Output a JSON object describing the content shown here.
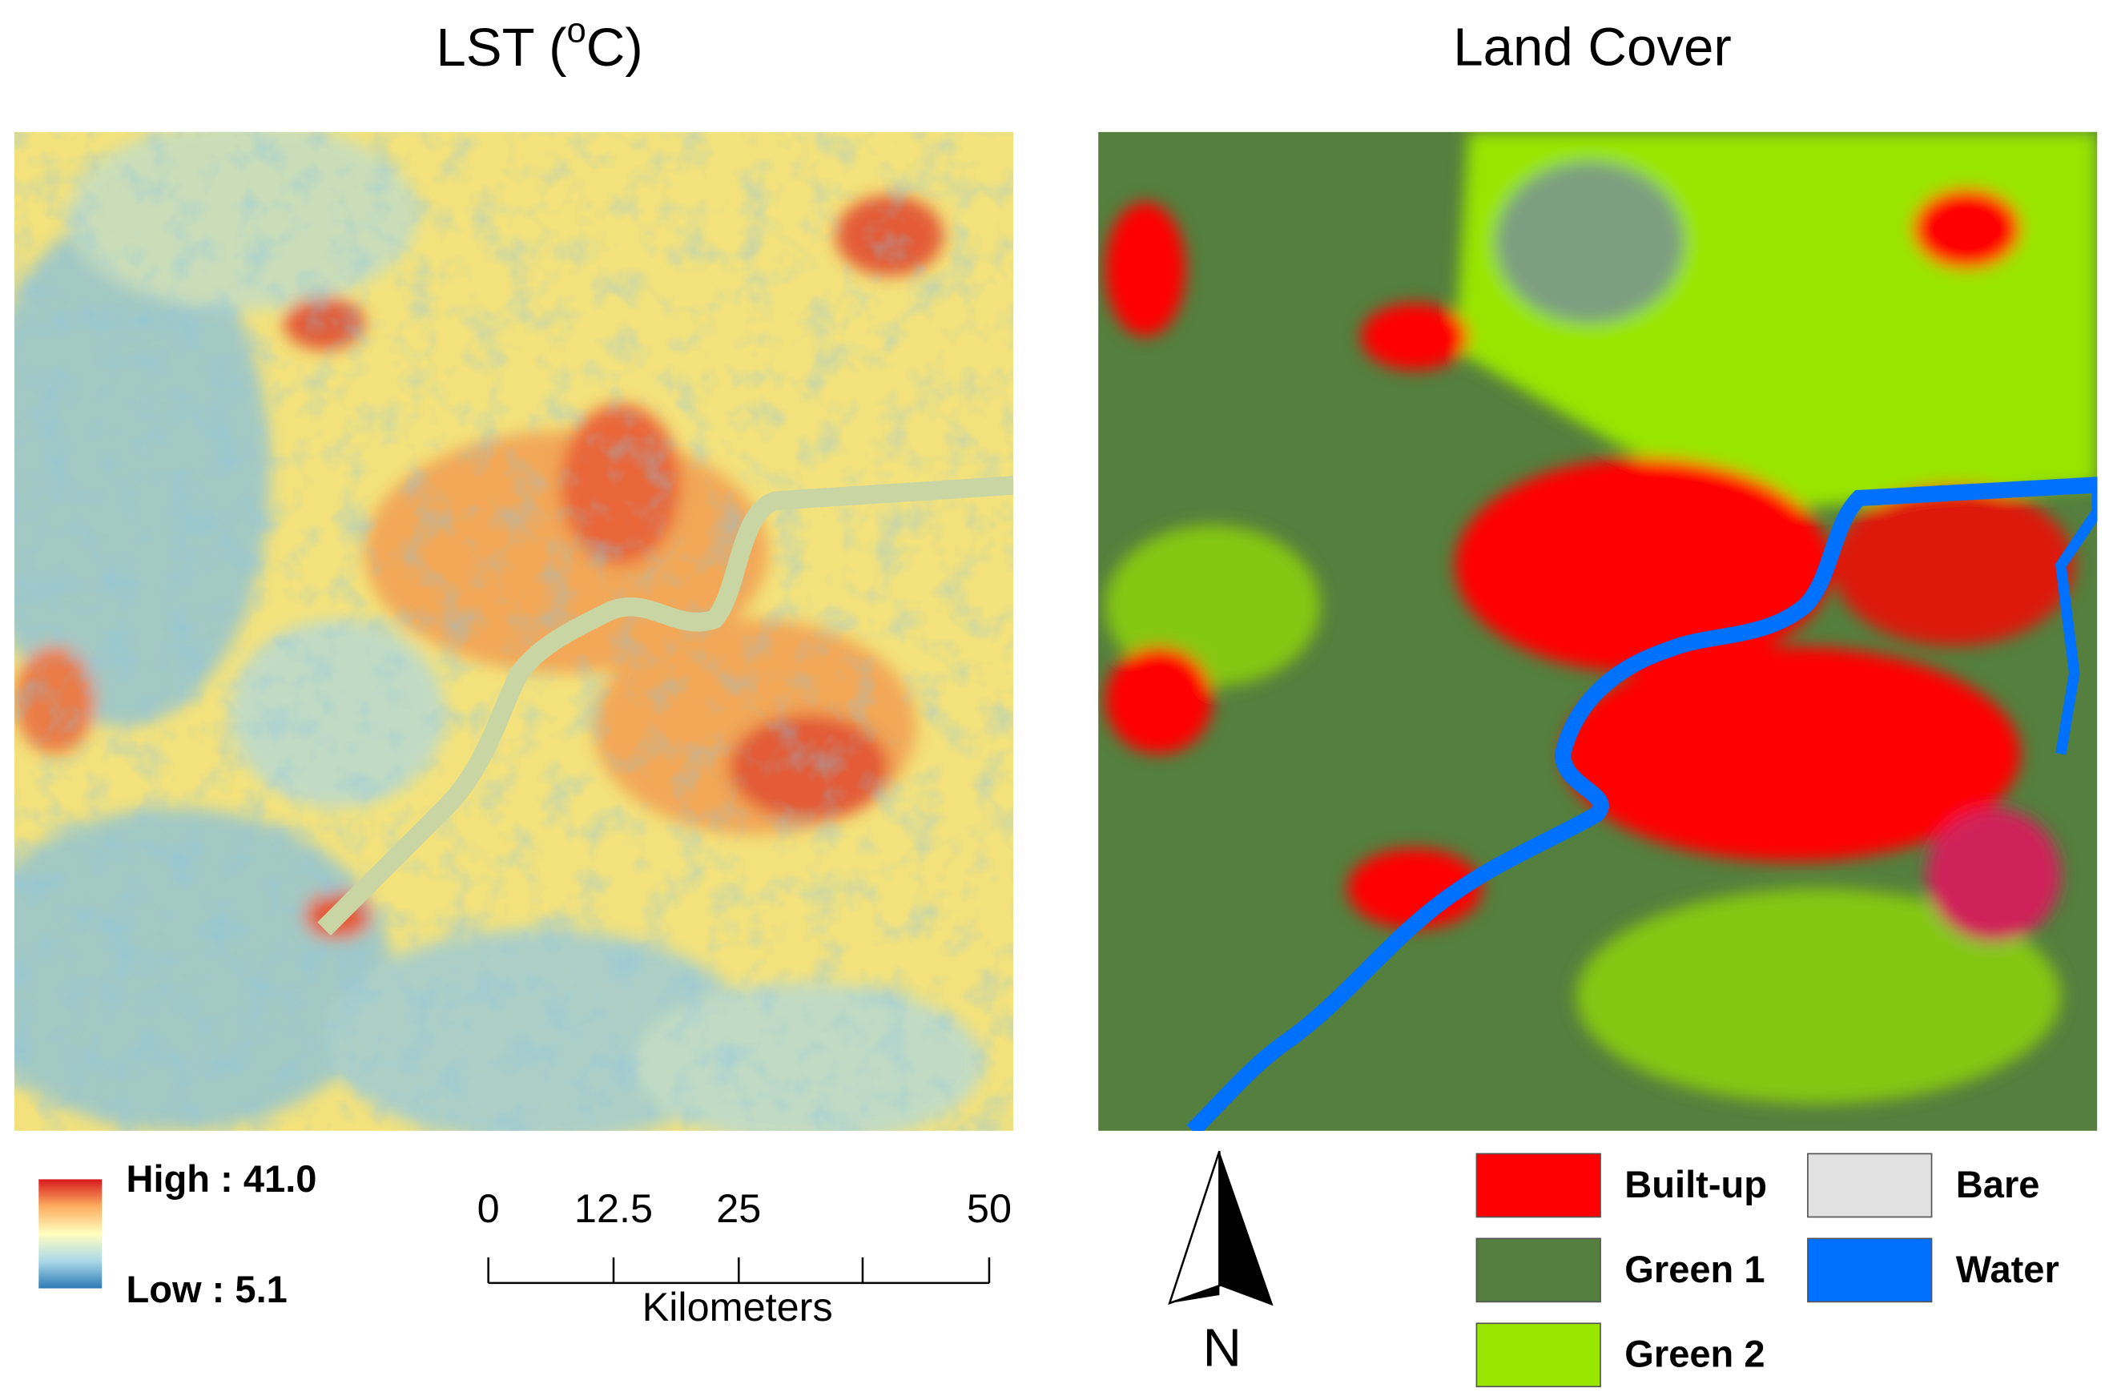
{
  "lst_map": {
    "title": {
      "text": "LST (",
      "superscript": "o",
      "suffix": "C)"
    },
    "legend": {
      "high": "High : 41.0",
      "low": "Low : 5.1",
      "ramp_colors": [
        "#d7191c",
        "#fdae61",
        "#ffffbf",
        "#abd9e9",
        "#2c7bb6"
      ]
    }
  },
  "scale_bar": {
    "ticks": [
      0,
      12.5,
      25,
      50
    ],
    "unit": "Kilometers"
  },
  "land_cover_map": {
    "title": "Land Cover",
    "north": "N",
    "legend": [
      {
        "label": "Built-up",
        "color": "#ff0000"
      },
      {
        "label": "Green 1",
        "color": "#547f3e"
      },
      {
        "label": "Green 2",
        "color": "#99e600"
      },
      {
        "label": "Bare",
        "color": "#e1e1e1"
      },
      {
        "label": "Water",
        "color": "#0070ff"
      }
    ]
  }
}
